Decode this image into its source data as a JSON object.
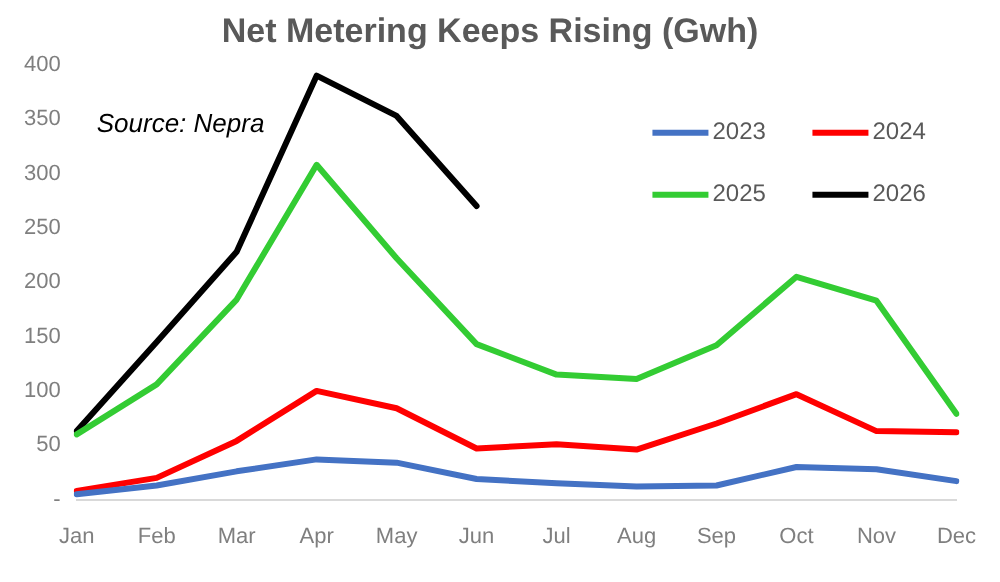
{
  "chart_data": {
    "type": "line",
    "title": "Net Metering Keeps Rising (Gwh)",
    "categories": [
      "Jan",
      "Feb",
      "Mar",
      "Apr",
      "May",
      "Jun",
      "Jul",
      "Aug",
      "Sep",
      "Oct",
      "Nov",
      "Dec"
    ],
    "series": [
      {
        "name": "2023",
        "color": "#4472c4",
        "values": [
          5,
          13,
          26,
          37,
          34,
          19,
          15,
          12,
          13,
          30,
          28,
          17
        ]
      },
      {
        "name": "2024",
        "color": "#ff0000",
        "values": [
          8,
          20,
          54,
          100,
          84,
          47,
          51,
          46,
          70,
          97,
          63,
          62
        ]
      },
      {
        "name": "2025",
        "color": "#33cc33",
        "values": [
          60,
          106,
          184,
          308,
          222,
          143,
          115,
          111,
          142,
          205,
          183,
          79
        ]
      },
      {
        "name": "2026",
        "color": "#000000",
        "values": [
          63,
          145,
          228,
          390,
          353,
          270,
          null,
          null,
          null,
          null,
          null,
          null
        ]
      }
    ],
    "ylim": [
      0,
      400
    ],
    "yticks": [
      {
        "value": 0,
        "label": "-"
      },
      50,
      100,
      150,
      200,
      250,
      300,
      350,
      400
    ],
    "grid": false,
    "legend": "top right",
    "marker": "none",
    "line_style": "solid",
    "annotations": [
      "Source: Nepra"
    ]
  }
}
